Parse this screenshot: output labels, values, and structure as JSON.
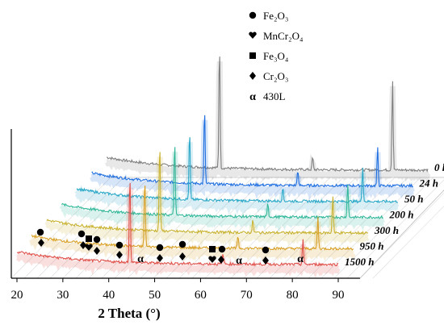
{
  "chart_data": {
    "type": "line",
    "title": "",
    "xlabel": "2 Theta (°)",
    "ylabel": "",
    "xlim": [
      20,
      90
    ],
    "x_ticks": [
      "20",
      "30",
      "40",
      "50",
      "60",
      "70",
      "80",
      "90"
    ],
    "style": "3d-waterfall",
    "legend": {
      "placement": "top-right",
      "entries": [
        {
          "symbol": "circle",
          "label": "Fe₂O₃"
        },
        {
          "symbol": "heart",
          "label": "MnCr₂O₄"
        },
        {
          "symbol": "square",
          "label": "Fe₃O₄"
        },
        {
          "symbol": "diamond",
          "label": "Cr₂O₃"
        },
        {
          "symbol": "alpha",
          "label": "430L"
        }
      ]
    },
    "series": [
      {
        "name": "0 h",
        "color": "#7f7f7f",
        "peaks": [
          [
            44.6,
            1.0
          ],
          [
            64.9,
            0.1
          ],
          [
            82.3,
            0.72
          ]
        ]
      },
      {
        "name": "24 h",
        "color": "#1f6fe0",
        "peaks": [
          [
            44.6,
            0.6
          ],
          [
            64.9,
            0.12
          ],
          [
            82.3,
            0.3
          ]
        ]
      },
      {
        "name": "50 h",
        "color": "#2aa8c8",
        "peaks": [
          [
            44.6,
            0.55
          ],
          [
            64.9,
            0.11
          ],
          [
            82.3,
            0.28
          ]
        ]
      },
      {
        "name": "200 h",
        "color": "#33b89a",
        "peaks": [
          [
            44.6,
            0.6
          ],
          [
            64.9,
            0.11
          ],
          [
            82.3,
            0.27
          ]
        ]
      },
      {
        "name": "300 h",
        "color": "#c9b230",
        "peaks": [
          [
            44.6,
            0.7
          ],
          [
            64.9,
            0.1
          ],
          [
            82.3,
            0.3
          ]
        ]
      },
      {
        "name": "950 h",
        "color": "#d9a128",
        "peaks": [
          [
            44.6,
            0.55
          ],
          [
            64.9,
            0.1
          ],
          [
            82.3,
            0.25
          ]
        ]
      },
      {
        "name": "1500 h",
        "color": "#e0504a",
        "peaks": [
          [
            44.6,
            0.7
          ],
          [
            64.9,
            0.08
          ],
          [
            82.3,
            0.2
          ]
        ]
      }
    ],
    "annotations": [
      {
        "label": "α",
        "x": 44.6
      },
      {
        "label": "α",
        "x": 64.9
      },
      {
        "label": "α",
        "x": 82.3
      }
    ]
  }
}
